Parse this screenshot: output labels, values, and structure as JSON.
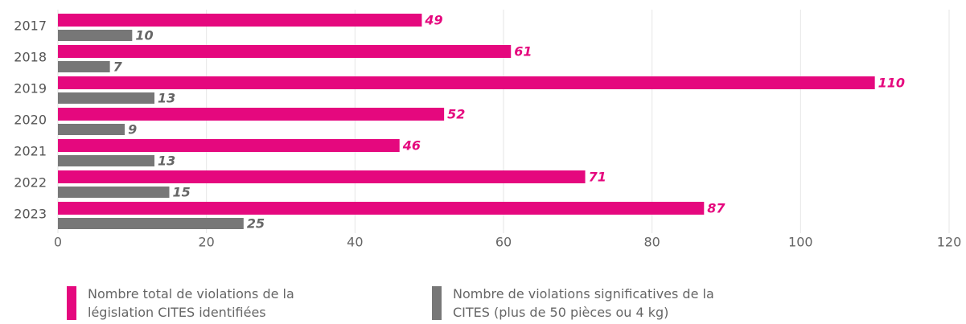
{
  "chart_data": {
    "type": "barh",
    "categories": [
      "2017",
      "2018",
      "2019",
      "2020",
      "2021",
      "2022",
      "2023"
    ],
    "series": [
      {
        "name": "Nombre total de violations de la législation CITES identifiées",
        "color": "#e5087e",
        "values": [
          49,
          61,
          110,
          52,
          46,
          71,
          87
        ]
      },
      {
        "name": "Nombre de violations significatives de la CITES (plus de 50 pièces ou 4 kg)",
        "color": "#777777",
        "values": [
          10,
          7,
          13,
          9,
          13,
          15,
          25
        ]
      }
    ],
    "xlim": [
      0,
      120
    ],
    "xticks": [
      0,
      20,
      40,
      60,
      80,
      100,
      120
    ],
    "grid": true
  }
}
